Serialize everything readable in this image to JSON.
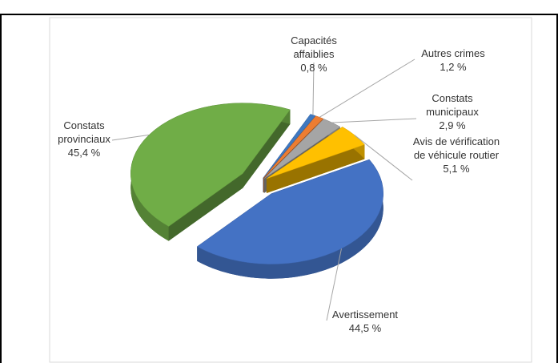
{
  "chart_data": {
    "type": "pie",
    "categories": [
      "Capacités affaiblies",
      "Autres crimes",
      "Constats municipaux",
      "Avis de vérification de véhicule routier",
      "Avertissement",
      "Constats provinciaux"
    ],
    "values": [
      0.8,
      1.2,
      2.9,
      5.1,
      44.5,
      45.4
    ],
    "value_labels": [
      "0,8 %",
      "1,2 %",
      "2,9 %",
      "5,1 %",
      "44,5 %",
      "45,4 %"
    ],
    "colors": [
      "#3f78c0",
      "#ed7d31",
      "#a5a5a5",
      "#ffc000",
      "#4472c4",
      "#70ad47"
    ]
  }
}
